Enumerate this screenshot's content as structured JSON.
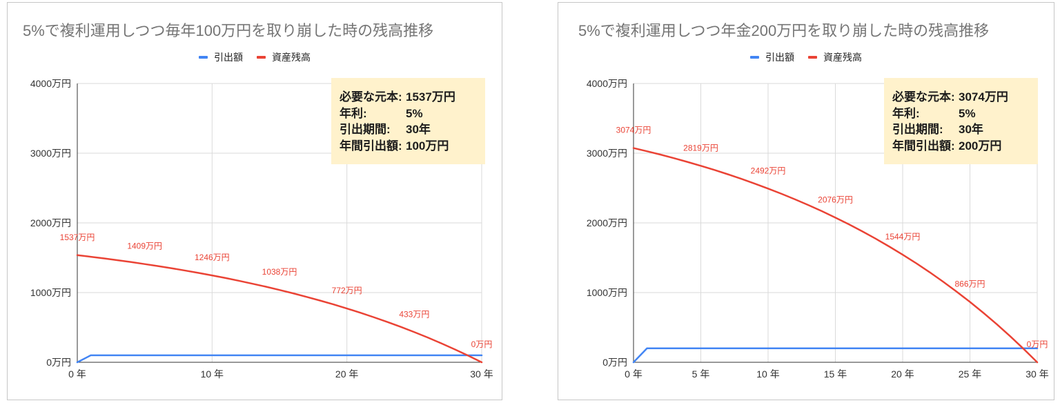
{
  "chart_data": [
    {
      "type": "line",
      "title": "5%で複利運用しつつ毎年100万円を取り崩した時の残高推移",
      "legend": "top",
      "grid": true,
      "x": [
        0,
        1,
        2,
        3,
        4,
        5,
        6,
        7,
        8,
        9,
        10,
        11,
        12,
        13,
        14,
        15,
        16,
        17,
        18,
        19,
        20,
        21,
        22,
        23,
        24,
        25,
        26,
        27,
        28,
        29,
        30
      ],
      "xlim": [
        0,
        30
      ],
      "xticks": [
        0,
        10,
        20,
        30
      ],
      "xtick_labels": [
        "0 年",
        "10 年",
        "20 年",
        "30 年"
      ],
      "ylim": [
        0,
        4000
      ],
      "yticks": [
        0,
        1000,
        2000,
        3000,
        4000
      ],
      "ytick_labels": [
        "0万円",
        "1000万円",
        "2000万円",
        "3000万円",
        "4000万円"
      ],
      "series": [
        {
          "name": "引出額",
          "color": "#4285f4",
          "values": [
            0,
            100,
            100,
            100,
            100,
            100,
            100,
            100,
            100,
            100,
            100,
            100,
            100,
            100,
            100,
            100,
            100,
            100,
            100,
            100,
            100,
            100,
            100,
            100,
            100,
            100,
            100,
            100,
            100,
            100,
            100
          ]
        },
        {
          "name": "資産残高",
          "color": "#ea4335",
          "values": [
            1537,
            1514,
            1490,
            1464,
            1438,
            1409,
            1380,
            1349,
            1316,
            1282,
            1246,
            1209,
            1169,
            1127,
            1084,
            1038,
            990,
            939,
            886,
            831,
            772,
            711,
            646,
            579,
            508,
            433,
            355,
            272,
            186,
            95,
            0
          ],
          "data_labels": [
            {
              "x": 0,
              "text": "1537万円"
            },
            {
              "x": 5,
              "text": "1409万円"
            },
            {
              "x": 10,
              "text": "1246万円"
            },
            {
              "x": 15,
              "text": "1038万円"
            },
            {
              "x": 20,
              "text": "772万円"
            },
            {
              "x": 25,
              "text": "433万円"
            },
            {
              "x": 30,
              "text": "0万円"
            }
          ]
        }
      ],
      "info_box": {
        "background": "#fff2cc",
        "rows": [
          {
            "label": "必要な元本:",
            "value": "1537万円"
          },
          {
            "label": "年利:",
            "value": "5%"
          },
          {
            "label": "引出期間:",
            "value": "30年"
          },
          {
            "label": "年間引出額:",
            "value": "100万円"
          }
        ]
      }
    },
    {
      "type": "line",
      "title": "5%で複利運用しつつ年金200万円を取り崩した時の残高推移",
      "legend": "top",
      "grid": true,
      "x": [
        0,
        1,
        2,
        3,
        4,
        5,
        6,
        7,
        8,
        9,
        10,
        11,
        12,
        13,
        14,
        15,
        16,
        17,
        18,
        19,
        20,
        21,
        22,
        23,
        24,
        25,
        26,
        27,
        28,
        29,
        30
      ],
      "xlim": [
        0,
        30
      ],
      "xticks": [
        0,
        5,
        10,
        15,
        20,
        25,
        30
      ],
      "xtick_labels": [
        "0 年",
        "5 年",
        "10 年",
        "15 年",
        "20 年",
        "25 年",
        "30 年"
      ],
      "ylim": [
        0,
        4000
      ],
      "yticks": [
        0,
        1000,
        2000,
        3000,
        4000
      ],
      "ytick_labels": [
        "0万円",
        "1000万円",
        "2000万円",
        "3000万円",
        "4000万円"
      ],
      "series": [
        {
          "name": "引出額",
          "color": "#4285f4",
          "values": [
            0,
            200,
            200,
            200,
            200,
            200,
            200,
            200,
            200,
            200,
            200,
            200,
            200,
            200,
            200,
            200,
            200,
            200,
            200,
            200,
            200,
            200,
            200,
            200,
            200,
            200,
            200,
            200,
            200,
            200,
            200
          ]
        },
        {
          "name": "資産残高",
          "color": "#ea4335",
          "values": [
            3074,
            3028,
            2980,
            2929,
            2875,
            2819,
            2760,
            2698,
            2633,
            2564,
            2492,
            2417,
            2338,
            2255,
            2168,
            2076,
            1980,
            1879,
            1773,
            1661,
            1544,
            1422,
            1293,
            1157,
            1015,
            866,
            709,
            545,
            372,
            190,
            0
          ],
          "data_labels": [
            {
              "x": 0,
              "text": "3074万円"
            },
            {
              "x": 5,
              "text": "2819万円"
            },
            {
              "x": 10,
              "text": "2492万円"
            },
            {
              "x": 15,
              "text": "2076万円"
            },
            {
              "x": 20,
              "text": "1544万円"
            },
            {
              "x": 25,
              "text": "866万円"
            },
            {
              "x": 30,
              "text": "0万円"
            }
          ]
        }
      ],
      "info_box": {
        "background": "#fff2cc",
        "rows": [
          {
            "label": "必要な元本:",
            "value": "3074万円"
          },
          {
            "label": "年利:",
            "value": "5%"
          },
          {
            "label": "引出期間:",
            "value": "30年"
          },
          {
            "label": "年間引出額:",
            "value": "200万円"
          }
        ]
      }
    }
  ]
}
